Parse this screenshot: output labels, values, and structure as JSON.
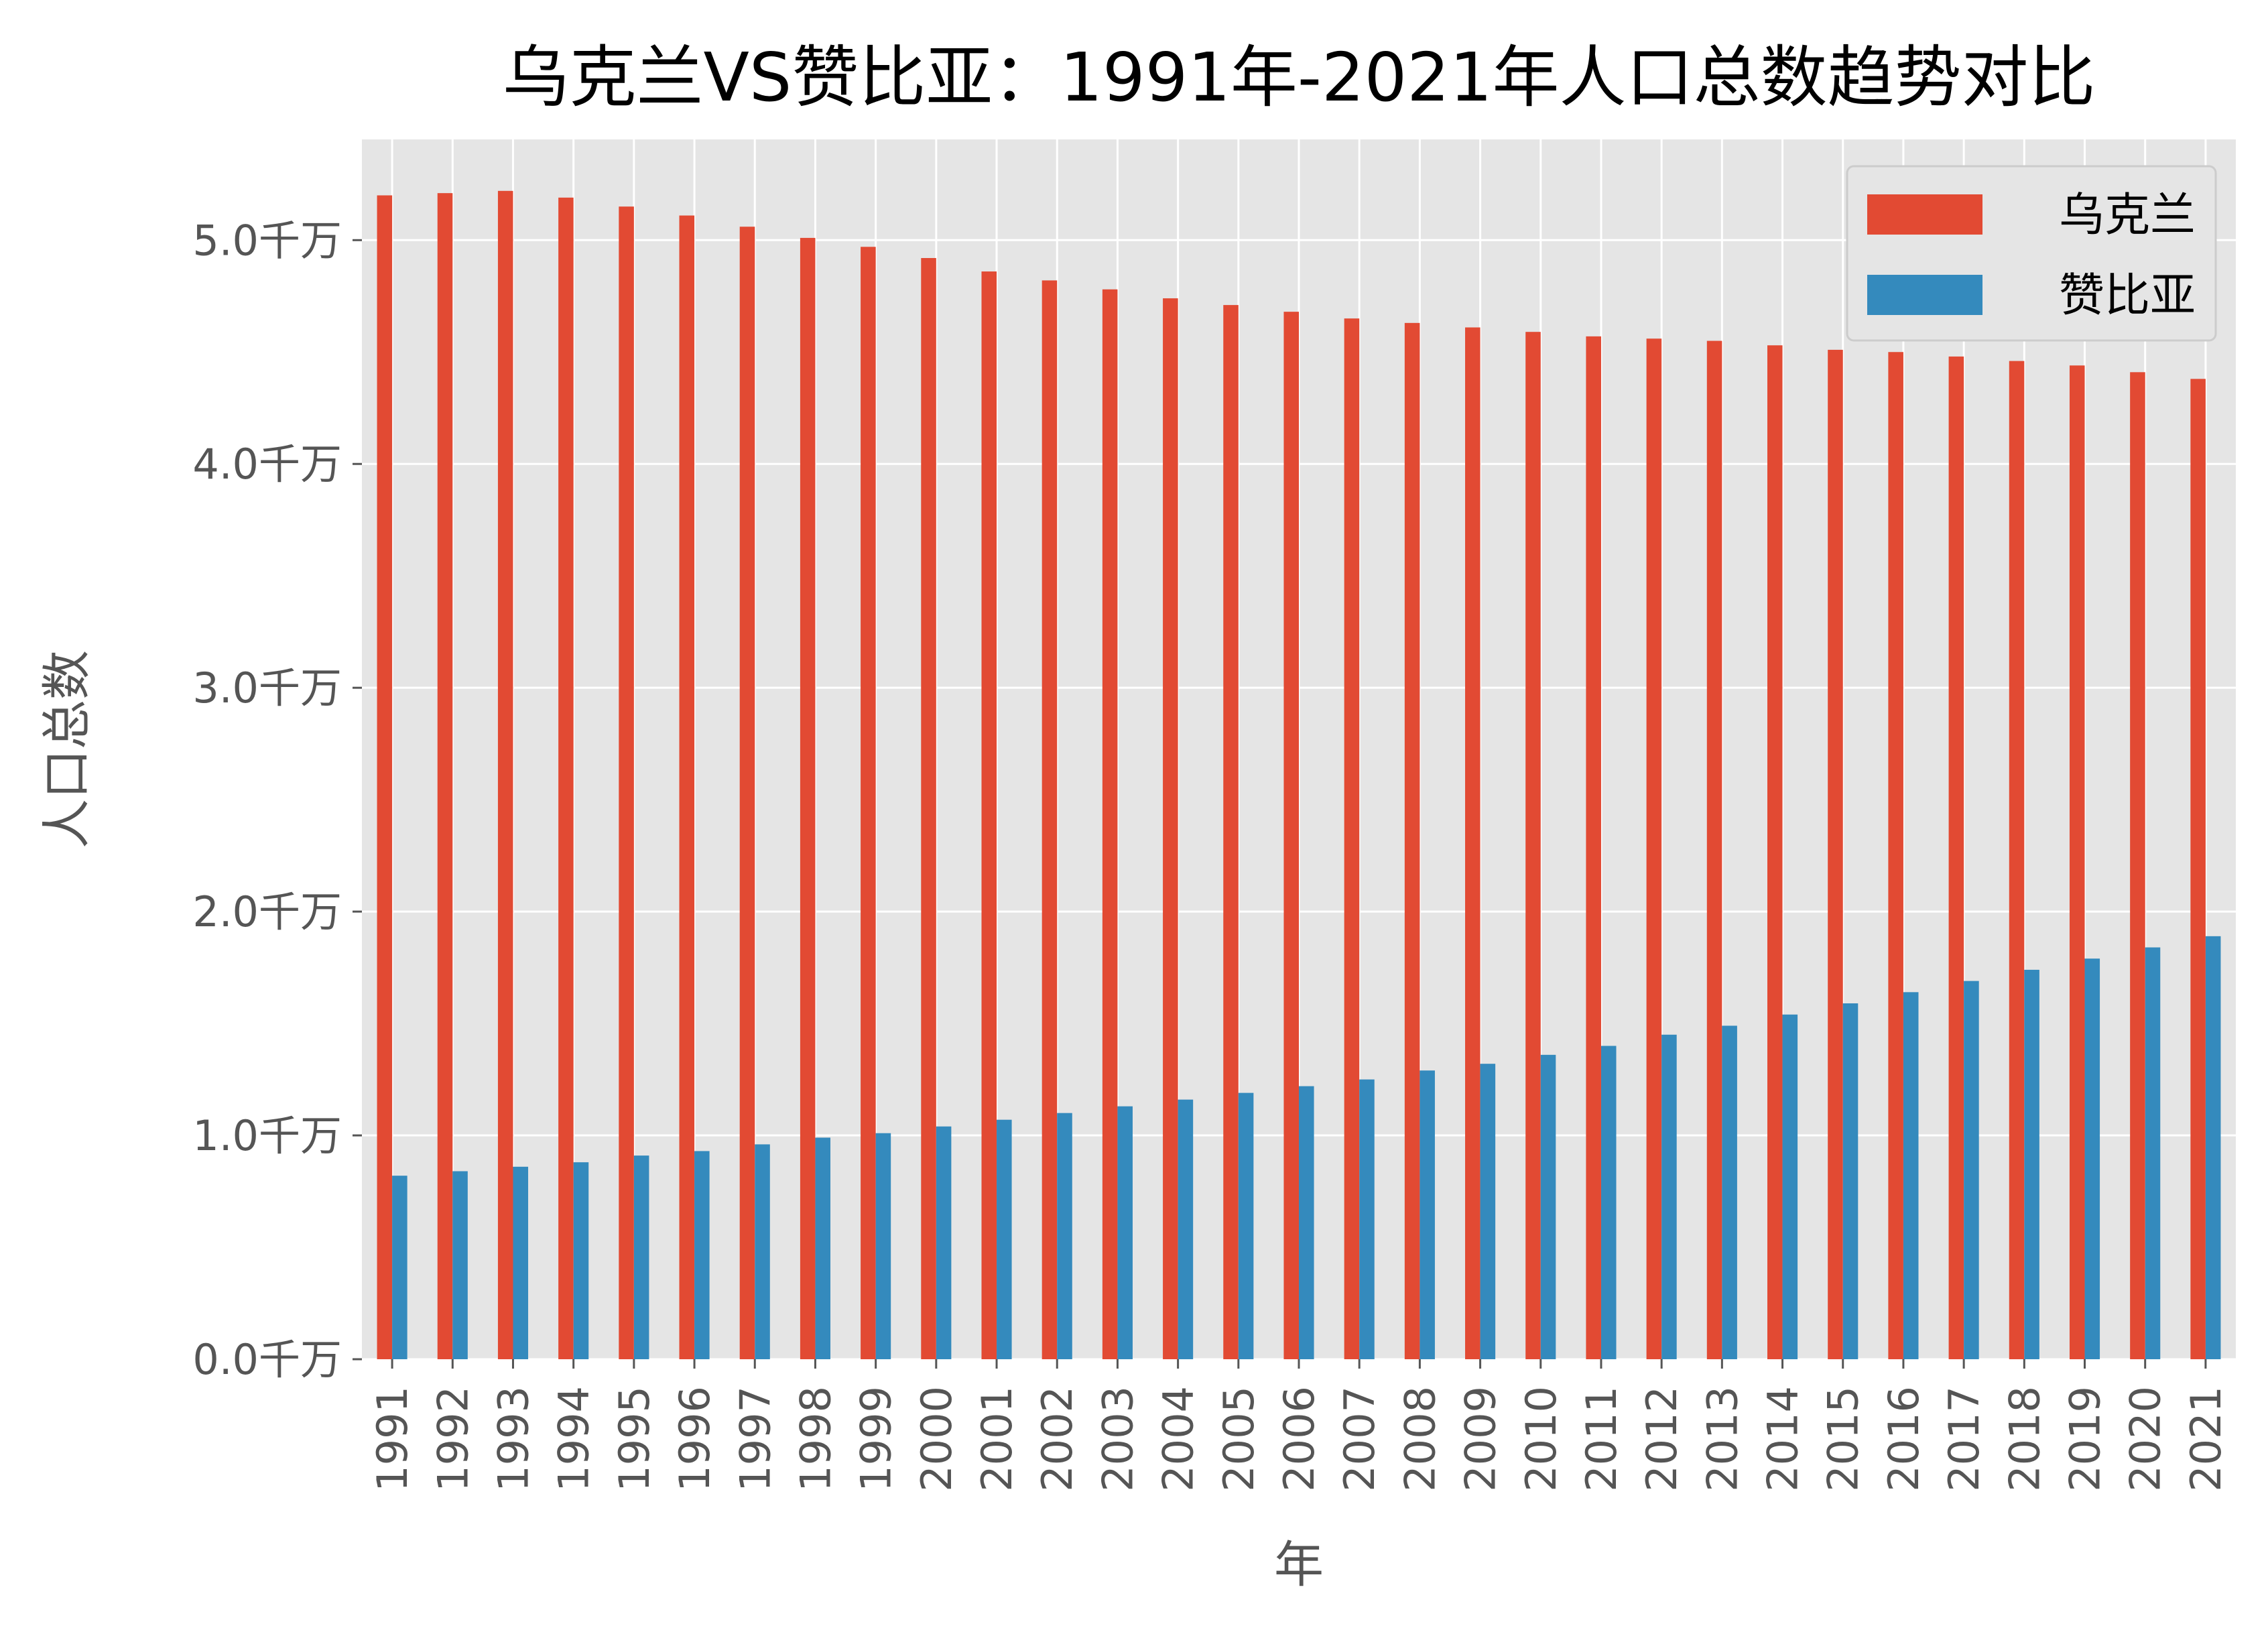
{
  "chart_data": {
    "type": "bar",
    "title": "乌克兰VS赞比亚：1991年-2021年人口总数趋势对比",
    "xlabel": "年",
    "ylabel": "人口总数",
    "y_unit_suffix": "千万",
    "ylim": [
      0,
      5.45
    ],
    "yticks": [
      0.0,
      1.0,
      2.0,
      3.0,
      4.0,
      5.0
    ],
    "ytick_labels": [
      "0.0千万",
      "1.0千万",
      "2.0千万",
      "3.0千万",
      "4.0千万",
      "5.0千万"
    ],
    "grid": true,
    "legend_position": "top-right",
    "categories": [
      "1991",
      "1992",
      "1993",
      "1994",
      "1995",
      "1996",
      "1997",
      "1998",
      "1999",
      "2000",
      "2001",
      "2002",
      "2003",
      "2004",
      "2005",
      "2006",
      "2007",
      "2008",
      "2009",
      "2010",
      "2011",
      "2012",
      "2013",
      "2014",
      "2015",
      "2016",
      "2017",
      "2018",
      "2019",
      "2020",
      "2021"
    ],
    "series": [
      {
        "name": "乌克兰",
        "color": "#E24A33",
        "values": [
          5.2,
          5.21,
          5.22,
          5.19,
          5.15,
          5.11,
          5.06,
          5.01,
          4.97,
          4.92,
          4.86,
          4.82,
          4.78,
          4.74,
          4.71,
          4.68,
          4.65,
          4.63,
          4.61,
          4.59,
          4.57,
          4.56,
          4.55,
          4.53,
          4.51,
          4.5,
          4.48,
          4.46,
          4.44,
          4.41,
          4.38
        ]
      },
      {
        "name": "赞比亚",
        "color": "#348ABD",
        "values": [
          0.82,
          0.84,
          0.86,
          0.88,
          0.91,
          0.93,
          0.96,
          0.99,
          1.01,
          1.04,
          1.07,
          1.1,
          1.13,
          1.16,
          1.19,
          1.22,
          1.25,
          1.29,
          1.32,
          1.36,
          1.4,
          1.45,
          1.49,
          1.54,
          1.59,
          1.64,
          1.69,
          1.74,
          1.79,
          1.84,
          1.89
        ]
      }
    ]
  }
}
